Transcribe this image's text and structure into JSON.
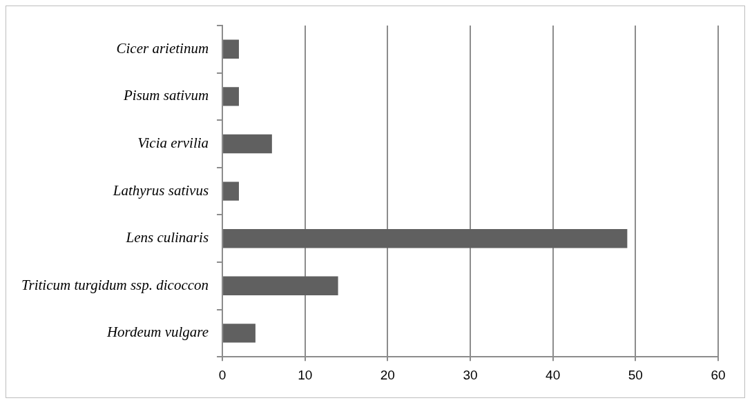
{
  "chart_data": {
    "type": "bar",
    "orientation": "horizontal",
    "categories": [
      "Cicer arietinum",
      "Pisum sativum",
      "Vicia ervilia",
      "Lathyrus sativus",
      "Lens culinaris",
      "Triticum turgidum ssp. dicoccon",
      "Hordeum vulgare"
    ],
    "values": [
      2,
      2,
      6,
      2,
      49,
      14,
      4
    ],
    "color": "#606060",
    "xlim": [
      0,
      60
    ],
    "xticks": [
      0,
      10,
      20,
      30,
      40,
      50,
      60
    ],
    "grid": "x"
  }
}
